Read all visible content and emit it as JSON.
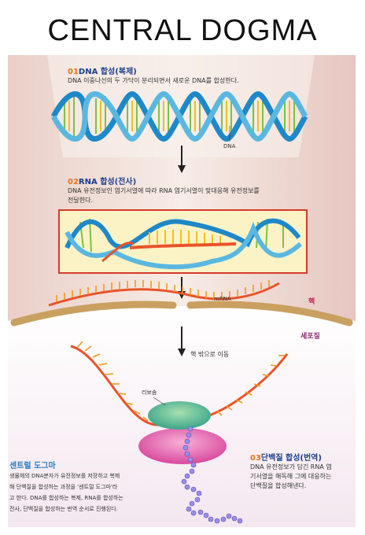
{
  "title": "CENTRAL DOGMA",
  "step1": {
    "num": "01",
    "heading": "DNA 합성(복제)",
    "desc": "DNA 이중나선의 두 가닥이 분리되면서 새로운 DNA를 합성한다.",
    "label": "DNA"
  },
  "step2": {
    "num": "02",
    "heading": "RNA 합성(전사)",
    "desc_line1": "DNA 유전정보인 염기서열에 따라 RNA 염기서열이 맞대응해 유전정보를",
    "desc_line2": "전달한다."
  },
  "mrna_label": "mRNA",
  "nucleus_label": "핵",
  "cytoplasm_label": "세포질",
  "exit_label": "핵 밖으로 이동",
  "ribosome_label": "리보솜",
  "step3": {
    "num": "03",
    "heading": "단백질 합성(번역)",
    "desc_lines": [
      "DNA 유전정보가 담긴 RNA 염",
      "기서열을 해독해 그에 대응하는",
      "단백질을 합성해낸다."
    ]
  },
  "sidebar": {
    "title": "센트럴 도그마",
    "lines": [
      "생물체의 DNA분자가 유전정보를 저장하고 복제",
      "해 단백질을 합성하는 과정을 '센트럴 도그마'라",
      "고 한다. DNA를 합성하는 복제, RNA를 합성하는",
      "전사, 단백질을 합성하는 번역 순서로 진행된다."
    ]
  },
  "colors": {
    "heading": "#1a3f8c",
    "number": "#e2731c",
    "nucleus": "#c0285a",
    "cytoplasm": "#8a2a6e",
    "sidebar_title": "#2a7bbf"
  }
}
